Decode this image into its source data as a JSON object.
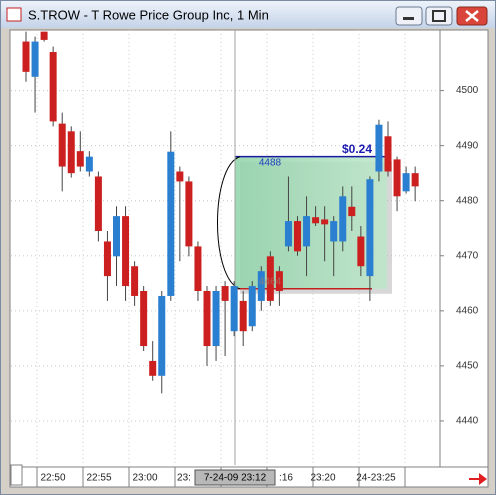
{
  "window": {
    "title": "S.TROW - T Rowe Price Group Inc, 1 Min"
  },
  "chart_data": {
    "type": "candlestick",
    "open": [
      4508.9,
      4502.5,
      4510.7,
      4507,
      4494,
      4492.6,
      4489,
      4485.3,
      4484.4,
      4472.6,
      4469.9,
      4477.2,
      4468.1,
      4463.6,
      4450.9,
      4448.2,
      4462.7,
      4485.3,
      4483.5,
      4471.7,
      4463.6,
      4453.6,
      4464.5,
      4456.3,
      4461.8,
      4457.2,
      4461.8,
      4469.9,
      4467.2,
      4471.7,
      4476.3,
      4471.7,
      4477,
      4476.6,
      4472.6,
      4472.6,
      4478.9,
      4473.5,
      4466.3,
      4485.3,
      4491.7,
      4487.5,
      4481.7,
      4485
    ],
    "high": [
      4510.7,
      4509.8,
      4510.7,
      4508,
      4496,
      4493.5,
      4492.6,
      4489,
      4485.3,
      4474.5,
      4479,
      4479,
      4469,
      4464.5,
      4454.5,
      4463.6,
      4492.6,
      4486.2,
      4484.4,
      4472.6,
      4464.5,
      4464.5,
      4465.4,
      4465.4,
      4463.6,
      4465.4,
      4468.1,
      4470.8,
      4468.1,
      4484.4,
      4477.2,
      4480.8,
      4479,
      4479,
      4477.2,
      4482.6,
      4482.6,
      4475.4,
      4484.4,
      4494.7,
      4494.4,
      4488,
      4486.2,
      4486.2
    ],
    "low": [
      4501.6,
      4496,
      4508.9,
      4493.5,
      4481.7,
      4484.2,
      4485.3,
      4484.4,
      4472.6,
      4461.8,
      4464.5,
      4461.8,
      4460.9,
      4452.7,
      4447.3,
      4445,
      4461.8,
      4469,
      4469.9,
      4461.8,
      4450,
      4450.9,
      4451.8,
      4455.4,
      4453.6,
      4456.3,
      4460,
      4460.9,
      4460.9,
      4470.8,
      4470,
      4466.3,
      4475.4,
      4469,
      4466.3,
      4470.8,
      4474.5,
      4466.3,
      4461.8,
      4483.5,
      4484.4,
      4478.1,
      4481.3,
      4479.9
    ],
    "close": [
      4503.4,
      4508.9,
      4509.2,
      4494.4,
      4486.2,
      4485,
      4486.2,
      4488,
      4474.5,
      4466.3,
      4477.2,
      4464.5,
      4462.7,
      4453.6,
      4448.2,
      4462.7,
      4488.9,
      4483.5,
      4471.7,
      4463.6,
      4453.6,
      4463.6,
      4461.8,
      4464.5,
      4456.3,
      4464.5,
      4467.2,
      4461.8,
      4463.6,
      4476.3,
      4470.8,
      4477.2,
      4475.9,
      4475.7,
      4476.3,
      4480.8,
      4477.2,
      4468.1,
      4483.9,
      4493.8,
      4485.3,
      4480.8,
      4485,
      4482.6
    ],
    "up_color": "#2a7fd0",
    "down_color": "#cc2020",
    "ylim": [
      4432,
      4511
    ],
    "yticks": [
      4440,
      4450,
      4460,
      4470,
      4480,
      4490,
      4500
    ],
    "grid": true,
    "xtick_labels": [
      "22:50",
      "22:55",
      "23:00",
      "23:",
      ":16",
      "23:20",
      "24-23:25"
    ],
    "crosshair_label": "7-24-09 23:12",
    "measure": {
      "high": 4488,
      "low": 4464,
      "label": "$0.24"
    }
  }
}
